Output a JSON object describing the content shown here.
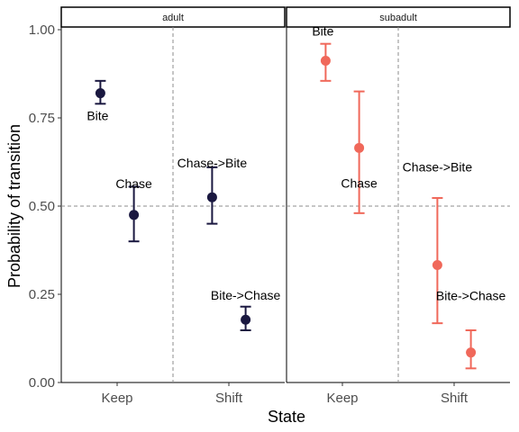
{
  "chart_data": {
    "type": "scatter",
    "xlabel": "State",
    "ylabel": "Probability of transition",
    "ylim": [
      0,
      1
    ],
    "yticks": [
      0.0,
      0.25,
      0.5,
      0.75,
      1.0
    ],
    "ytick_labels": [
      "0.00",
      "0.25",
      "0.50",
      "0.75",
      "1.00"
    ],
    "categories": [
      "Keep",
      "Shift"
    ],
    "reference_line_y": 0.5,
    "grid": false,
    "legend": "none",
    "panels": [
      {
        "name": "adult",
        "color": "#1a1840",
        "points": [
          {
            "category": "Keep",
            "offset": -0.15,
            "label": "Bite",
            "y": 0.82,
            "ymin": 0.79,
            "ymax": 0.855
          },
          {
            "category": "Keep",
            "offset": 0.15,
            "label": "Chase",
            "y": 0.475,
            "ymin": 0.4,
            "ymax": 0.555
          },
          {
            "category": "Shift",
            "offset": -0.15,
            "label": "Chase->Bite",
            "y": 0.525,
            "ymin": 0.45,
            "ymax": 0.61
          },
          {
            "category": "Shift",
            "offset": 0.15,
            "label": "Bite->Chase",
            "y": 0.178,
            "ymin": 0.148,
            "ymax": 0.215
          }
        ]
      },
      {
        "name": "subadult",
        "color": "#f0685a",
        "points": [
          {
            "category": "Keep",
            "offset": -0.15,
            "label": "Bite",
            "y": 0.912,
            "ymin": 0.855,
            "ymax": 0.96
          },
          {
            "category": "Keep",
            "offset": 0.15,
            "label": "Chase",
            "y": 0.665,
            "ymin": 0.48,
            "ymax": 0.825
          },
          {
            "category": "Shift",
            "offset": -0.15,
            "label": "Chase->Bite",
            "y": 0.333,
            "ymin": 0.168,
            "ymax": 0.523
          },
          {
            "category": "Shift",
            "offset": 0.15,
            "label": "Bite->Chase",
            "y": 0.085,
            "ymin": 0.04,
            "ymax": 0.148
          }
        ]
      }
    ]
  }
}
